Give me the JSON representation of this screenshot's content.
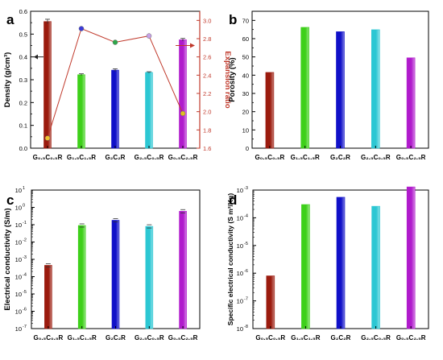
{
  "bar_colors": [
    "#9B1B0E",
    "#3ED01A",
    "#1010C8",
    "#2CC7D3",
    "#B01BCC"
  ],
  "chart_data": [
    {
      "panel_label": "a",
      "type": "bar",
      "categories": [
        "G₀.₅C₀.₅R",
        "G₁.₅C₁.₅R",
        "G₂C₂R",
        "G₂.₅C₀.₅R",
        "G₀.₅C₂.₅R"
      ],
      "values": [
        0.555,
        0.322,
        0.342,
        0.332,
        0.475
      ],
      "errors": [
        0.01,
        0.004,
        0.006,
        0.003,
        0.006
      ],
      "ylabel": "Density (g/cm³)",
      "ylim": [
        0,
        0.6
      ],
      "yticks": [
        "0.0",
        "0.1",
        "0.2",
        "0.3",
        "0.4",
        "0.5",
        "0.6"
      ],
      "secondary_axis": {
        "type": "line",
        "ylabel": "Expansion ratio",
        "ylim": [
          1.6,
          3.1
        ],
        "yticks": [
          "1.6",
          "1.8",
          "2.0",
          "2.2",
          "2.4",
          "2.6",
          "2.8",
          "3.0"
        ],
        "values": [
          1.71,
          2.91,
          2.76,
          2.83,
          1.98
        ],
        "color": "#C0392B"
      }
    },
    {
      "panel_label": "b",
      "type": "bar",
      "categories": [
        "G₀.₅C₀.₅R",
        "G₁.₅C₁.₅R",
        "G₂C₂R",
        "G₂.₅C₀.₅R",
        "G₀.₅C₂.₅R"
      ],
      "values": [
        41.5,
        66.2,
        63.8,
        64.9,
        49.5
      ],
      "ylabel": "Porosity (%)",
      "ylim": [
        0,
        75
      ],
      "yticks": [
        "0",
        "10",
        "20",
        "30",
        "40",
        "50",
        "60",
        "70"
      ]
    },
    {
      "panel_label": "c",
      "type": "bar",
      "scale": "log",
      "categories": [
        "G₀.₅C₀.₅R",
        "G₁.₅C₁.₅R",
        "G₂C₂R",
        "G₂.₅C₀.₅R",
        "G₀.₅C₂.₅R"
      ],
      "values": [
        0.00045,
        0.09,
        0.18,
        0.08,
        0.6
      ],
      "ylabel": "Electrical conductivity (S/m)",
      "ylim_exp": [
        -7,
        1
      ],
      "yticks": [
        "10",
        "10",
        "10",
        "10",
        "10",
        "10",
        "10",
        "10",
        "10"
      ],
      "ytick_exponents": [
        "-7",
        "-6",
        "-5",
        "-4",
        "-3",
        "-2",
        "-1",
        "0",
        "1"
      ]
    },
    {
      "panel_label": "d",
      "type": "bar",
      "scale": "log",
      "categories": [
        "G₀.₅C₀.₅R",
        "G₁.₅C₁.₅R",
        "G₂C₂R",
        "G₂.₅C₀.₅R",
        "G₀.₅C₂.₅R"
      ],
      "values": [
        8e-07,
        0.0003,
        0.00055,
        0.00026,
        0.0013
      ],
      "ylabel": "Specific electrical conductivity (S m²/Kg)",
      "ylim_exp": [
        -8,
        -3
      ],
      "yticks": [
        "10",
        "10",
        "10",
        "10",
        "10",
        "10"
      ],
      "ytick_exponents": [
        "-8",
        "-7",
        "-6",
        "-5",
        "-4",
        "-3"
      ]
    }
  ]
}
